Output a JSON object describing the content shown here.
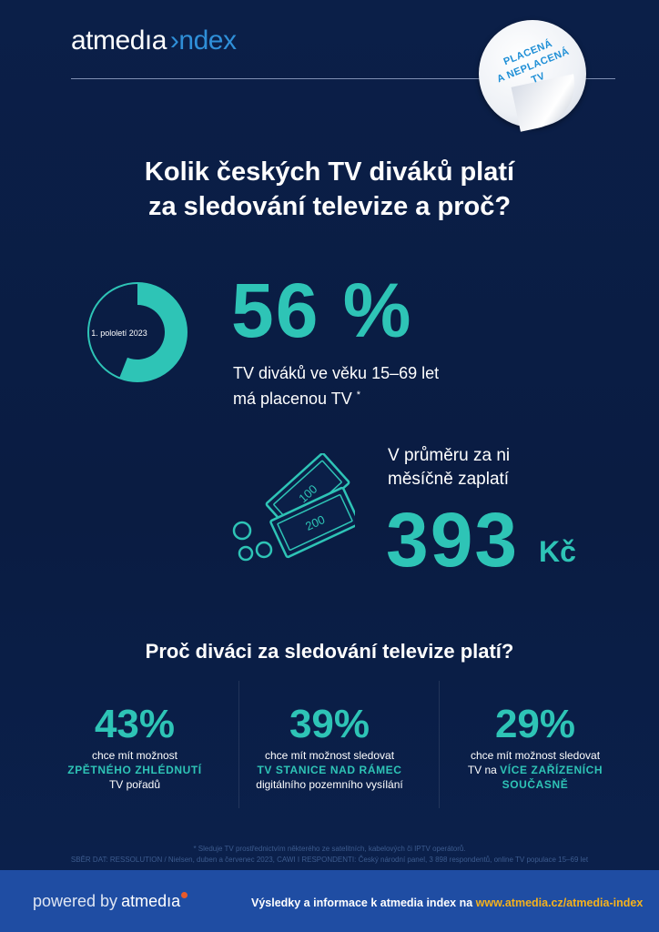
{
  "header": {
    "logo_brand": "atmedıa",
    "logo_index": "›ndex"
  },
  "sticker": {
    "line1": "PLACENÁ",
    "line2": "A NEPLACENÁ",
    "line3": "TV"
  },
  "title": {
    "line1": "Kolik českých TV diváků platí",
    "line2": "za sledování televize a proč?"
  },
  "paid_share": {
    "donut_label": "1. pololetí 2023",
    "value_fraction": 0.56,
    "value_text": "56 %",
    "desc_line1": "TV diváků ve věku 15–69 let",
    "desc_line2": "má placenou TV",
    "asterisk": "*"
  },
  "average_payment": {
    "desc_line1": "V průměru za ni",
    "desc_line2": "měsíčně zaplatí",
    "value": "393",
    "unit": "Kč",
    "banknote1": "100",
    "banknote2": "200"
  },
  "reasons": {
    "title": "Proč diváci za sledování televize platí?",
    "items": [
      {
        "pct": "43%",
        "line1": "chce mít možnost",
        "highlight": "ZPĚTNÉHO ZHLÉDNUTÍ",
        "line3": "TV pořadů"
      },
      {
        "pct": "39%",
        "line1": "chce mít možnost sledovat",
        "highlight": "TV STANICE NAD RÁMEC",
        "line3": "digitálního pozemního vysílání"
      },
      {
        "pct": "29%",
        "line1": "chce mít možnost sledovat",
        "line2_prefix": "TV na",
        "highlight_a": "VÍCE ZAŘÍZENÍCH",
        "highlight_b": "SOUČASNĚ"
      }
    ]
  },
  "footnotes": {
    "line1": "* Sleduje TV prostřednictvím některého ze satelitních, kabelových či IPTV operátorů.",
    "line2": "SBĚR DAT: RESSOLUTION / Nielsen, duben a červenec 2023, CAWI   I   RESPONDENTI: Český národní panel, 3 898 respondentů, online TV populace 15–69 let"
  },
  "footer": {
    "powered_by": "powered by",
    "brand": "atmedıa",
    "text": "Výsledky a informace k atmedia index na",
    "url": "www.atmedia.cz/atmedia-index"
  },
  "colors": {
    "background": "#0b1f48",
    "accent_teal": "#2ec4b6",
    "footer_band": "#1f4da3",
    "url_yellow": "#f5b21c"
  }
}
